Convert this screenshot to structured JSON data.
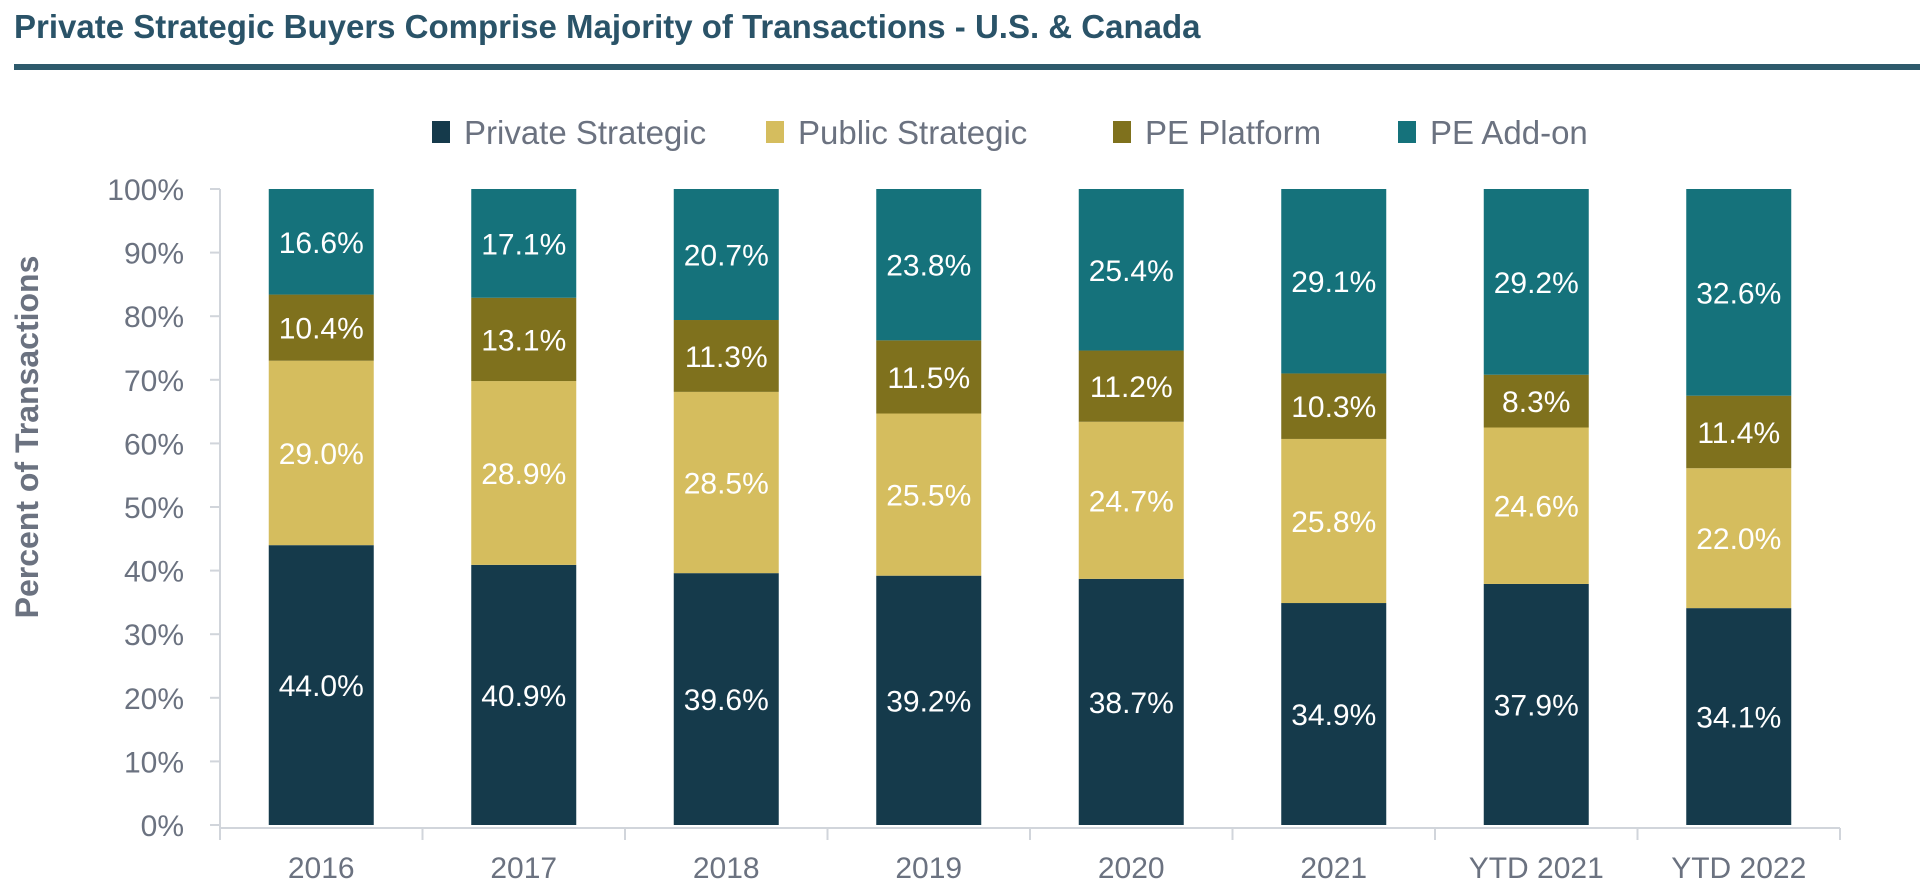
{
  "title": "Private Strategic Buyers Comprise Majority of Transactions - U.S. & Canada",
  "chart_data": {
    "type": "bar",
    "stacked": true,
    "title": "Private Strategic Buyers Comprise Majority of Transactions - U.S. & Canada",
    "xlabel": "",
    "ylabel": "Percent of Transactions",
    "ylim": [
      0,
      100
    ],
    "y_ticks": [
      "0%",
      "10%",
      "20%",
      "30%",
      "40%",
      "50%",
      "60%",
      "70%",
      "80%",
      "90%",
      "100%"
    ],
    "legend_position": "top",
    "categories": [
      "2016",
      "2017",
      "2018",
      "2019",
      "2020",
      "2021",
      "YTD 2021",
      "YTD 2022"
    ],
    "series": [
      {
        "name": "Private Strategic",
        "color": "#153a4b",
        "values": [
          44.0,
          40.9,
          39.6,
          39.2,
          38.7,
          34.9,
          37.9,
          34.1
        ],
        "labels": [
          "44.0%",
          "40.9%",
          "39.6%",
          "39.2%",
          "38.7%",
          "34.9%",
          "37.9%",
          "34.1%"
        ]
      },
      {
        "name": "Public Strategic",
        "color": "#d5bd5e",
        "values": [
          29.0,
          28.9,
          28.5,
          25.5,
          24.7,
          25.8,
          24.6,
          22.0
        ],
        "labels": [
          "29.0%",
          "28.9%",
          "28.5%",
          "25.5%",
          "24.7%",
          "25.8%",
          "24.6%",
          "22.0%"
        ]
      },
      {
        "name": "PE Platform",
        "color": "#7f711d",
        "values": [
          10.4,
          13.1,
          11.3,
          11.5,
          11.2,
          10.3,
          8.3,
          11.4
        ],
        "labels": [
          "10.4%",
          "13.1%",
          "11.3%",
          "11.5%",
          "11.2%",
          "10.3%",
          "8.3%",
          "11.4%"
        ]
      },
      {
        "name": "PE Add-on",
        "color": "#15727b",
        "values": [
          16.6,
          17.1,
          20.7,
          23.8,
          25.4,
          29.1,
          29.2,
          32.6
        ],
        "labels": [
          "16.6%",
          "17.1%",
          "20.7%",
          "23.8%",
          "25.4%",
          "29.1%",
          "29.2%",
          "32.6%"
        ]
      }
    ]
  }
}
